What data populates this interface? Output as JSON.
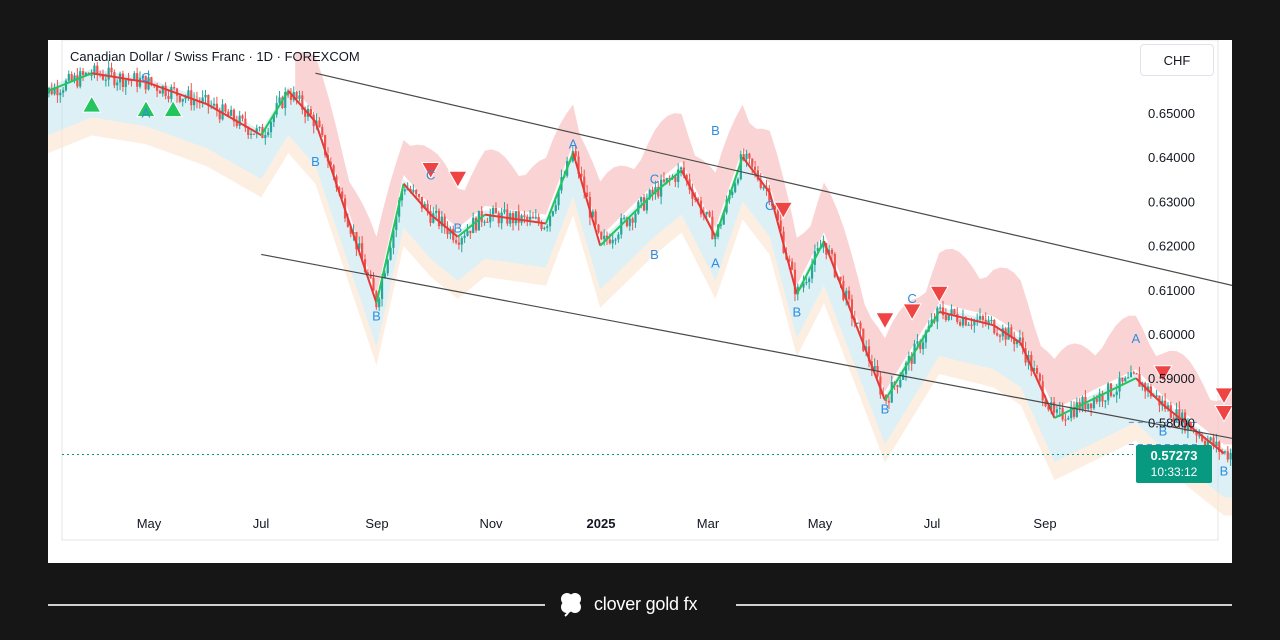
{
  "header": {
    "title": "Canadian Dollar / Swiss Franc · 1D · FOREXCOM",
    "currency_button": "CHF"
  },
  "price_tag": {
    "price": "0.57273",
    "countdown": "10:33:12"
  },
  "brand": {
    "name": "clover gold fx",
    "icon": "clover-icon"
  },
  "colors": {
    "up": "#26a69a",
    "down": "#ef5350",
    "resistance_fill": "#f8c6c6",
    "channel_line": "#4a4a4a",
    "label_blue": "#2f8de0",
    "tag": "#089981"
  },
  "chart_data": {
    "type": "candlestick",
    "symbol": "Canadian Dollar / Swiss Franc",
    "interval": "1D",
    "exchange": "FOREXCOM",
    "ylim": [
      0.568,
      0.66
    ],
    "yticks": [
      "0.65000",
      "0.64000",
      "0.63000",
      "0.62000",
      "0.61000",
      "0.60000",
      "0.59000",
      "0.58000"
    ],
    "xticks": [
      "May",
      "Jul",
      "Sep",
      "Nov",
      "2025",
      "Mar",
      "May",
      "Jul",
      "Sep"
    ],
    "last_price": 0.57273,
    "price_path": [
      [
        2024.17,
        0.654
      ],
      [
        2024.25,
        0.659
      ],
      [
        2024.33,
        0.657
      ],
      [
        2024.42,
        0.652
      ],
      [
        2024.5,
        0.645
      ],
      [
        2024.54,
        0.655
      ],
      [
        2024.58,
        0.648
      ],
      [
        2024.67,
        0.607
      ],
      [
        2024.71,
        0.634
      ],
      [
        2024.75,
        0.627
      ],
      [
        2024.79,
        0.622
      ],
      [
        2024.83,
        0.627
      ],
      [
        2024.92,
        0.625
      ],
      [
        2024.96,
        0.641
      ],
      [
        2025.0,
        0.62
      ],
      [
        2025.08,
        0.632
      ],
      [
        2025.12,
        0.637
      ],
      [
        2025.17,
        0.622
      ],
      [
        2025.21,
        0.64
      ],
      [
        2025.25,
        0.632
      ],
      [
        2025.29,
        0.609
      ],
      [
        2025.33,
        0.621
      ],
      [
        2025.42,
        0.585
      ],
      [
        2025.5,
        0.605
      ],
      [
        2025.58,
        0.602
      ],
      [
        2025.62,
        0.598
      ],
      [
        2025.67,
        0.581
      ],
      [
        2025.75,
        0.587
      ],
      [
        2025.79,
        0.59
      ],
      [
        2025.83,
        0.584
      ],
      [
        2025.92,
        0.573
      ]
    ],
    "channel": {
      "upper": [
        [
          2024.58,
          0.659
        ],
        [
          2025.96,
          0.61
        ]
      ],
      "lower": [
        [
          2024.5,
          0.618
        ],
        [
          2025.98,
          0.575
        ]
      ]
    },
    "wave_labels": [
      {
        "text": "A",
        "x": 2024.33,
        "y": 0.649
      },
      {
        "text": "B",
        "x": 2024.58,
        "y": 0.638
      },
      {
        "text": "B",
        "x": 2024.79,
        "y": 0.623
      },
      {
        "text": "B",
        "x": 2024.67,
        "y": 0.603
      },
      {
        "text": "A",
        "x": 2024.96,
        "y": 0.642
      },
      {
        "text": "B",
        "x": 2025.08,
        "y": 0.617
      },
      {
        "text": "A",
        "x": 2025.17,
        "y": 0.615
      },
      {
        "text": "B",
        "x": 2025.17,
        "y": 0.645
      },
      {
        "text": "B",
        "x": 2025.29,
        "y": 0.604
      },
      {
        "text": "B",
        "x": 2025.42,
        "y": 0.582
      },
      {
        "text": "A",
        "x": 2025.79,
        "y": 0.598
      },
      {
        "text": "B",
        "x": 2025.83,
        "y": 0.577
      },
      {
        "text": "B",
        "x": 2025.92,
        "y": 0.568
      },
      {
        "text": "C",
        "x": 2024.33,
        "y": 0.657
      },
      {
        "text": "C",
        "x": 2024.75,
        "y": 0.635
      },
      {
        "text": "C",
        "x": 2025.08,
        "y": 0.634
      },
      {
        "text": "C",
        "x": 2025.25,
        "y": 0.628
      },
      {
        "text": "C",
        "x": 2025.46,
        "y": 0.607
      }
    ],
    "projection_arrow": {
      "from": [
        2025.95,
        0.573
      ],
      "to": [
        2025.98,
        0.59
      ]
    },
    "grid": false,
    "legend": "none"
  }
}
